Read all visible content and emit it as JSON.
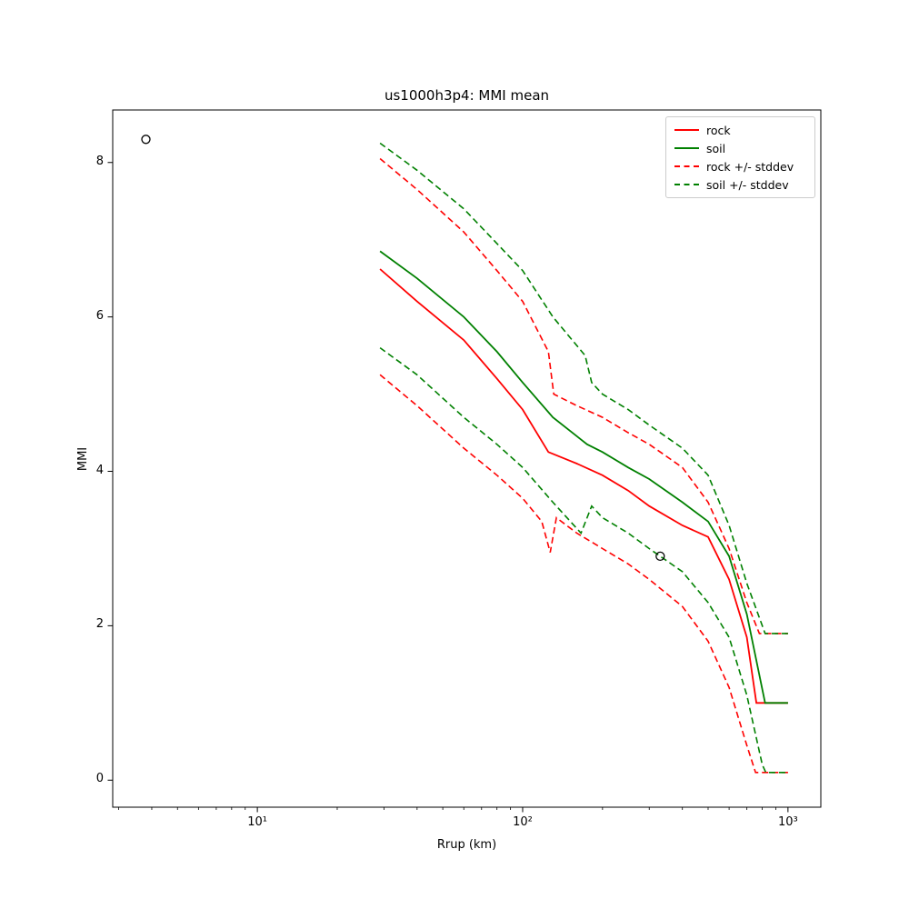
{
  "chart_data": {
    "type": "line",
    "title": "us1000h3p4: MMI mean",
    "xlabel": "Rrup (km)",
    "ylabel": "MMI",
    "xscale": "log",
    "xlim": [
      2.85,
      1330
    ],
    "ylim": [
      -0.35,
      8.68
    ],
    "grid": false,
    "legend_position": "upper right",
    "xticks": {
      "values": [
        10,
        100,
        1000
      ],
      "labels": [
        "10¹",
        "10²",
        "10³"
      ]
    },
    "yticks": {
      "values": [
        0,
        2,
        4,
        6,
        8
      ],
      "labels": [
        "0",
        "2",
        "4",
        "6",
        "8"
      ]
    },
    "legend": [
      {
        "label": "rock",
        "color": "#ff0000",
        "dashed": false
      },
      {
        "label": "soil",
        "color": "#008000",
        "dashed": false
      },
      {
        "label": "rock +/- stddev",
        "color": "#ff0000",
        "dashed": true
      },
      {
        "label": "soil +/- stddev",
        "color": "#008000",
        "dashed": true
      }
    ],
    "series": [
      {
        "name": "rock",
        "color": "#ff0000",
        "dashed": false,
        "x": [
          29,
          40,
          60,
          80,
          100,
          125,
          160,
          200,
          250,
          300,
          400,
          500,
          600,
          700,
          760,
          1000
        ],
        "y": [
          6.62,
          6.2,
          5.7,
          5.2,
          4.8,
          4.25,
          4.1,
          3.95,
          3.75,
          3.55,
          3.3,
          3.15,
          2.6,
          1.85,
          1.0,
          1.0
        ]
      },
      {
        "name": "soil",
        "color": "#008000",
        "dashed": false,
        "x": [
          29,
          40,
          60,
          80,
          100,
          130,
          175,
          200,
          250,
          300,
          400,
          500,
          600,
          700,
          820,
          1000
        ],
        "y": [
          6.85,
          6.5,
          6.0,
          5.55,
          5.15,
          4.7,
          4.35,
          4.25,
          4.05,
          3.9,
          3.6,
          3.35,
          2.9,
          2.15,
          1.0,
          1.0
        ]
      },
      {
        "name": "rock-plus-stddev",
        "color": "#ff0000",
        "dashed": true,
        "x": [
          29,
          40,
          60,
          80,
          100,
          125,
          131,
          160,
          200,
          250,
          300,
          400,
          500,
          600,
          700,
          780,
          1000
        ],
        "y": [
          8.05,
          7.65,
          7.1,
          6.6,
          6.2,
          5.55,
          5.0,
          4.85,
          4.7,
          4.5,
          4.35,
          4.05,
          3.6,
          3.0,
          2.3,
          1.9,
          1.9
        ]
      },
      {
        "name": "soil-plus-stddev",
        "color": "#008000",
        "dashed": true,
        "x": [
          29,
          40,
          60,
          80,
          100,
          130,
          172,
          182,
          200,
          250,
          300,
          400,
          500,
          600,
          700,
          820,
          1000
        ],
        "y": [
          8.25,
          7.9,
          7.4,
          6.95,
          6.6,
          6.0,
          5.5,
          5.15,
          5.0,
          4.8,
          4.6,
          4.3,
          3.95,
          3.3,
          2.55,
          1.9,
          1.9
        ]
      },
      {
        "name": "rock-minus-stddev",
        "color": "#ff0000",
        "dashed": true,
        "x": [
          29,
          40,
          60,
          80,
          100,
          118,
          127,
          134,
          160,
          200,
          250,
          300,
          400,
          500,
          600,
          700,
          755,
          1000
        ],
        "y": [
          5.25,
          4.85,
          4.3,
          3.95,
          3.65,
          3.35,
          2.95,
          3.4,
          3.2,
          3.0,
          2.8,
          2.6,
          2.25,
          1.8,
          1.2,
          0.45,
          0.1,
          0.1
        ]
      },
      {
        "name": "soil-minus-stddev",
        "color": "#008000",
        "dashed": true,
        "x": [
          29,
          40,
          60,
          80,
          100,
          130,
          166,
          182,
          200,
          250,
          300,
          400,
          500,
          600,
          700,
          800,
          825,
          1000
        ],
        "y": [
          5.6,
          5.25,
          4.7,
          4.35,
          4.05,
          3.6,
          3.2,
          3.55,
          3.4,
          3.2,
          3.0,
          2.7,
          2.3,
          1.85,
          1.1,
          0.2,
          0.1,
          0.1
        ]
      }
    ],
    "scatter": {
      "name": "observations",
      "marker": "open-circle",
      "color": "#000000",
      "points": [
        [
          3.8,
          8.3
        ],
        [
          330,
          2.9
        ]
      ]
    }
  }
}
